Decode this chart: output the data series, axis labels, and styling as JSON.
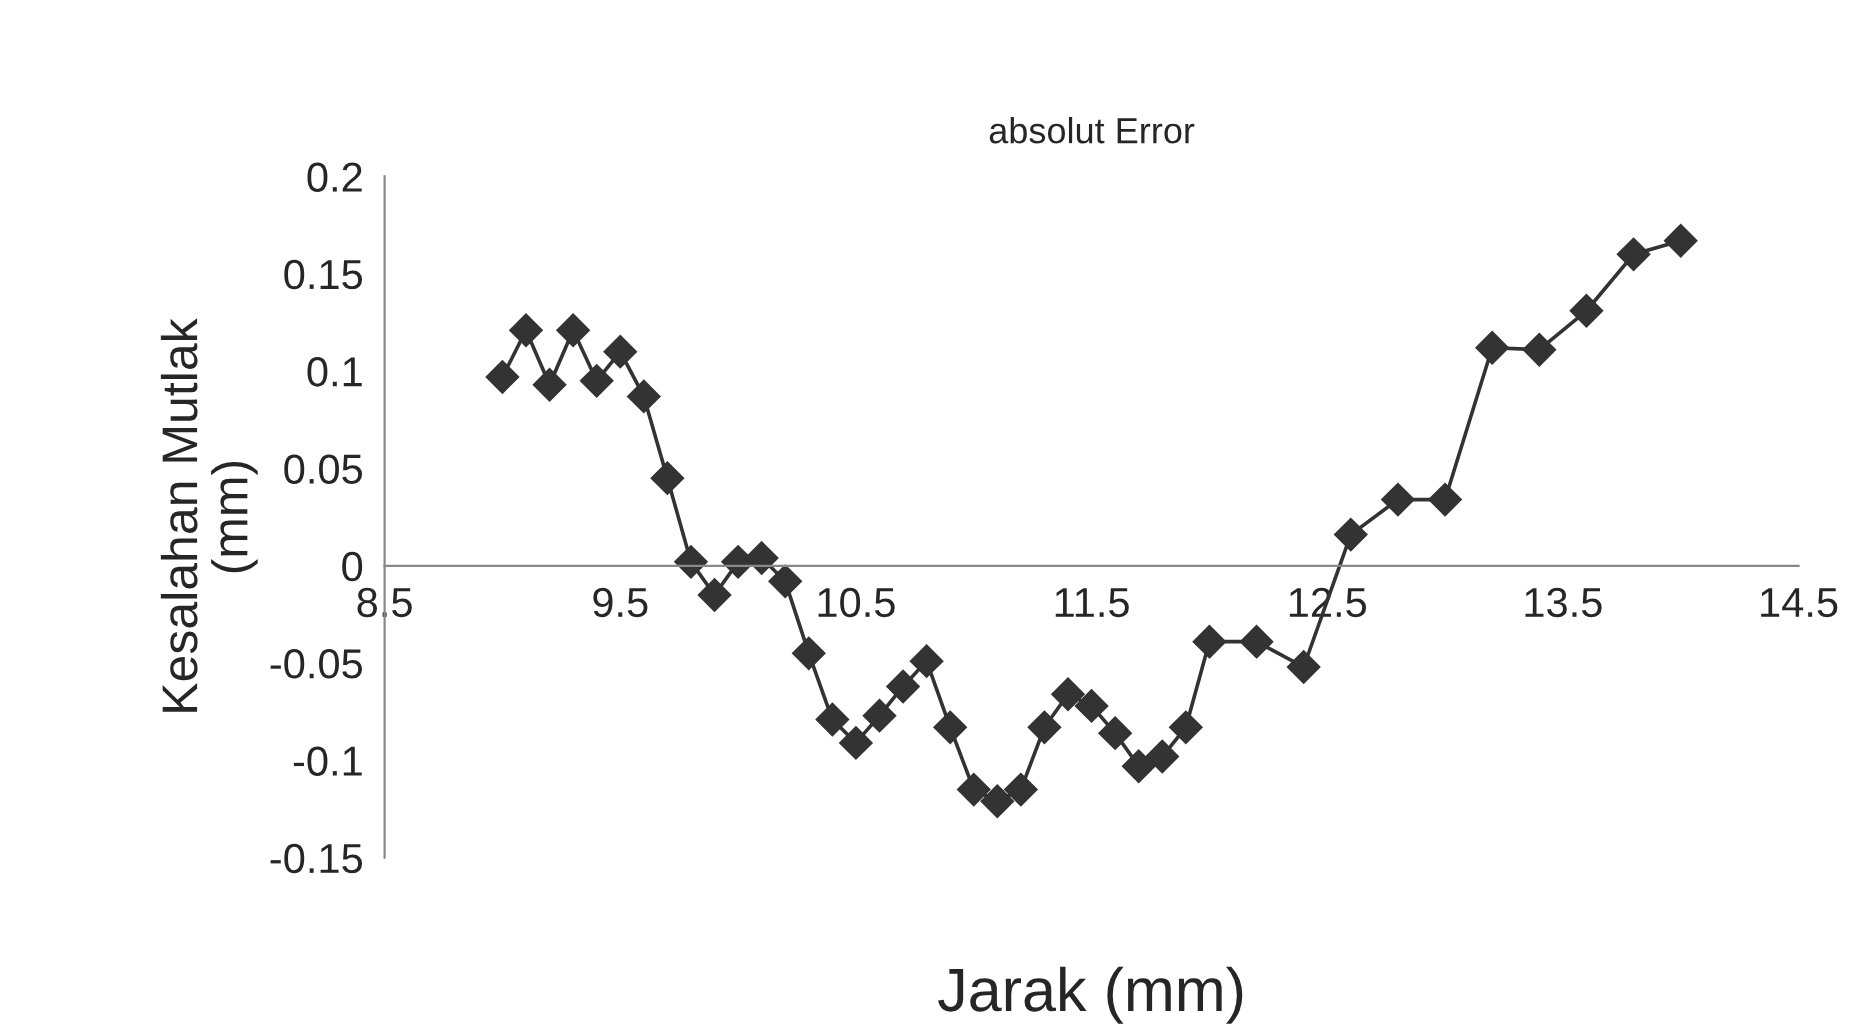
{
  "chart_data": {
    "type": "line",
    "title": "absolut Error",
    "xlabel": "Jarak (mm)",
    "ylabel": "Kesalahan Mutlak\n(mm)",
    "x": [
      9.0,
      9.1,
      9.2,
      9.3,
      9.4,
      9.5,
      9.6,
      9.7,
      9.8,
      9.9,
      10.0,
      10.1,
      10.2,
      10.3,
      10.4,
      10.5,
      10.6,
      10.7,
      10.8,
      10.9,
      11.0,
      11.1,
      11.2,
      11.3,
      11.4,
      11.5,
      11.6,
      11.7,
      11.8,
      11.9,
      12.0,
      12.2,
      12.4,
      12.6,
      12.8,
      13.0,
      13.2,
      13.4,
      13.6,
      13.8,
      14.0
    ],
    "series": [
      {
        "color": "#333333",
        "values": [
          0.097,
          0.121,
          0.093,
          0.121,
          0.095,
          0.11,
          0.087,
          0.045,
          0.002,
          -0.015,
          0.002,
          0.004,
          -0.008,
          -0.045,
          -0.079,
          -0.091,
          -0.077,
          -0.062,
          -0.049,
          -0.083,
          -0.115,
          -0.121,
          -0.115,
          -0.083,
          -0.066,
          -0.072,
          -0.086,
          -0.103,
          -0.098,
          -0.083,
          -0.039,
          -0.039,
          -0.052,
          0.016,
          0.034,
          0.034,
          0.112,
          0.111,
          0.131,
          0.16,
          0.167
        ]
      }
    ],
    "xlim": [
      8.5,
      14.5
    ],
    "xticks": [
      8.5,
      9.5,
      10.5,
      11.5,
      12.5,
      13.5,
      14.5
    ],
    "ylim": [
      -0.15,
      0.2
    ],
    "yticks": [
      -0.15,
      -0.1,
      -0.05,
      0,
      0.05,
      0.1,
      0.15,
      0.2
    ],
    "grid": false,
    "legend": false,
    "marker": "diamond",
    "line_style": "solid"
  }
}
